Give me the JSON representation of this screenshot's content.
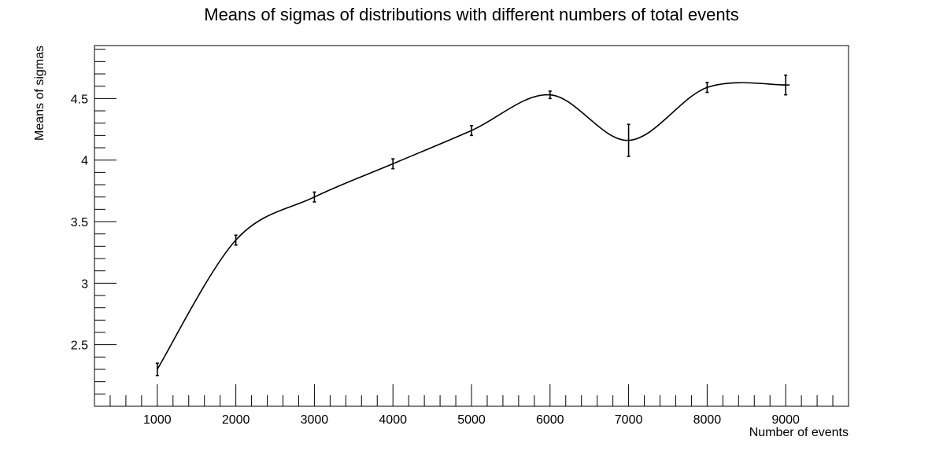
{
  "chart_data": {
    "type": "line",
    "title": "Means of sigmas of distributions with different numbers of total events",
    "xlabel": "Number of events",
    "ylabel": "Means of sigmas",
    "xlim": [
      200,
      9800
    ],
    "ylim": [
      2.0,
      4.93
    ],
    "x_ticks": [
      1000,
      2000,
      3000,
      4000,
      5000,
      6000,
      7000,
      8000,
      9000
    ],
    "y_ticks": [
      2.5,
      3,
      3.5,
      4,
      4.5
    ],
    "x_tick_labels": [
      "1000",
      "2000",
      "3000",
      "4000",
      "5000",
      "6000",
      "7000",
      "8000",
      "9000"
    ],
    "y_tick_labels": [
      "2.5",
      "3",
      "3.5",
      "4",
      "4.5"
    ],
    "grid": false,
    "line_color": "#000000",
    "series": [
      {
        "x": [
          1000,
          2000,
          3000,
          4000,
          5000,
          6000,
          7000,
          8000,
          9000
        ],
        "y": [
          2.3,
          3.35,
          3.7,
          3.97,
          4.24,
          4.53,
          4.16,
          4.59,
          4.61
        ],
        "yerr": [
          0.05,
          0.04,
          0.04,
          0.04,
          0.04,
          0.03,
          0.13,
          0.04,
          0.08
        ],
        "xerr": [
          0,
          0,
          0,
          0,
          0,
          0,
          0,
          0,
          50
        ]
      }
    ]
  }
}
